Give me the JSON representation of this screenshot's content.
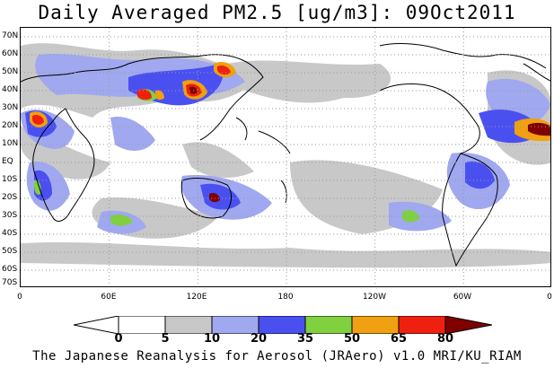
{
  "title": "Daily Averaged PM2.5 [ug/m3]: 09Oct2011",
  "footer": "The Japanese Reanalysis for Aerosol (JRAero) v1.0 MRI/KU_RIAM",
  "lat_labels": [
    "70N",
    "60N",
    "50N",
    "40N",
    "30N",
    "20N",
    "10N",
    "EQ",
    "10S",
    "20S",
    "30S",
    "40S",
    "50S",
    "60S",
    "70S"
  ],
  "lon_labels": [
    "0",
    "60E",
    "120E",
    "180",
    "120W",
    "60W",
    "0"
  ],
  "colorbar": {
    "levels": [
      "0",
      "5",
      "10",
      "20",
      "35",
      "50",
      "65",
      "80"
    ],
    "colors": [
      "#ffffff",
      "#c8c8c8",
      "#a0a8f0",
      "#4a50f0",
      "#80d040",
      "#f0a010",
      "#f02010",
      "#800000"
    ]
  }
}
